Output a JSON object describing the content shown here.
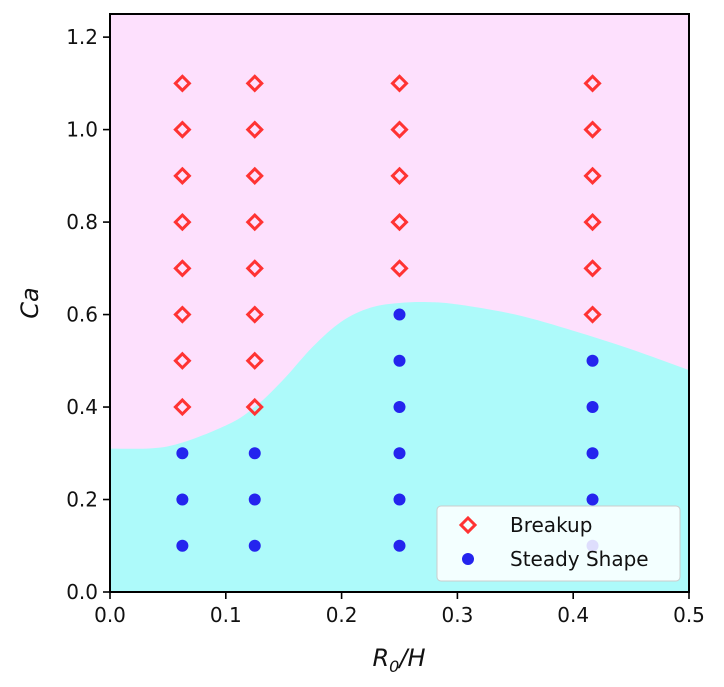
{
  "chart_data": {
    "type": "scatter",
    "xlabel": {
      "base": "R",
      "sub": "0",
      "rest": "/H"
    },
    "ylabel": "Ca",
    "xlim": [
      0.0,
      0.5
    ],
    "ylim": [
      0.0,
      1.25
    ],
    "xticks": [
      0.0,
      0.1,
      0.2,
      0.3,
      0.4,
      0.5
    ],
    "yticks": [
      0.0,
      0.2,
      0.4,
      0.6,
      0.8,
      1.0,
      1.2
    ],
    "xtick_labels": [
      "0.0",
      "0.1",
      "0.2",
      "0.3",
      "0.4",
      "0.5"
    ],
    "ytick_labels": [
      "0.0",
      "0.2",
      "0.4",
      "0.6",
      "0.8",
      "1.0",
      "1.2"
    ],
    "grid": false,
    "legend_position": "bottom-right",
    "regions": {
      "upper_color": "#fde0fd",
      "lower_color": "#adfafa",
      "boundary": [
        [
          0.0,
          0.31
        ],
        [
          0.05,
          0.315
        ],
        [
          0.1,
          0.36
        ],
        [
          0.125,
          0.4
        ],
        [
          0.15,
          0.46
        ],
        [
          0.175,
          0.53
        ],
        [
          0.2,
          0.585
        ],
        [
          0.225,
          0.615
        ],
        [
          0.25,
          0.625
        ],
        [
          0.275,
          0.627
        ],
        [
          0.3,
          0.622
        ],
        [
          0.35,
          0.6
        ],
        [
          0.4,
          0.565
        ],
        [
          0.45,
          0.525
        ],
        [
          0.5,
          0.48
        ]
      ]
    },
    "series": [
      {
        "name": "Breakup",
        "marker": "diamond-open",
        "color": "#ff3333",
        "points": [
          [
            0.0625,
            0.4
          ],
          [
            0.0625,
            0.5
          ],
          [
            0.0625,
            0.6
          ],
          [
            0.0625,
            0.7
          ],
          [
            0.0625,
            0.8
          ],
          [
            0.0625,
            0.9
          ],
          [
            0.0625,
            1.0
          ],
          [
            0.0625,
            1.1
          ],
          [
            0.125,
            0.4
          ],
          [
            0.125,
            0.5
          ],
          [
            0.125,
            0.6
          ],
          [
            0.125,
            0.7
          ],
          [
            0.125,
            0.8
          ],
          [
            0.125,
            0.9
          ],
          [
            0.125,
            1.0
          ],
          [
            0.125,
            1.1
          ],
          [
            0.25,
            0.7
          ],
          [
            0.25,
            0.8
          ],
          [
            0.25,
            0.9
          ],
          [
            0.25,
            1.0
          ],
          [
            0.25,
            1.1
          ],
          [
            0.4167,
            0.6
          ],
          [
            0.4167,
            0.7
          ],
          [
            0.4167,
            0.8
          ],
          [
            0.4167,
            0.9
          ],
          [
            0.4167,
            1.0
          ],
          [
            0.4167,
            1.1
          ]
        ]
      },
      {
        "name": "Steady Shape",
        "marker": "circle",
        "color": "#2424ee",
        "points": [
          [
            0.0625,
            0.1
          ],
          [
            0.0625,
            0.2
          ],
          [
            0.0625,
            0.3
          ],
          [
            0.125,
            0.1
          ],
          [
            0.125,
            0.2
          ],
          [
            0.125,
            0.3
          ],
          [
            0.25,
            0.1
          ],
          [
            0.25,
            0.2
          ],
          [
            0.25,
            0.3
          ],
          [
            0.25,
            0.4
          ],
          [
            0.25,
            0.5
          ],
          [
            0.25,
            0.6
          ],
          [
            0.4167,
            0.1
          ],
          [
            0.4167,
            0.2
          ],
          [
            0.4167,
            0.3
          ],
          [
            0.4167,
            0.4
          ],
          [
            0.4167,
            0.5
          ]
        ]
      }
    ]
  }
}
